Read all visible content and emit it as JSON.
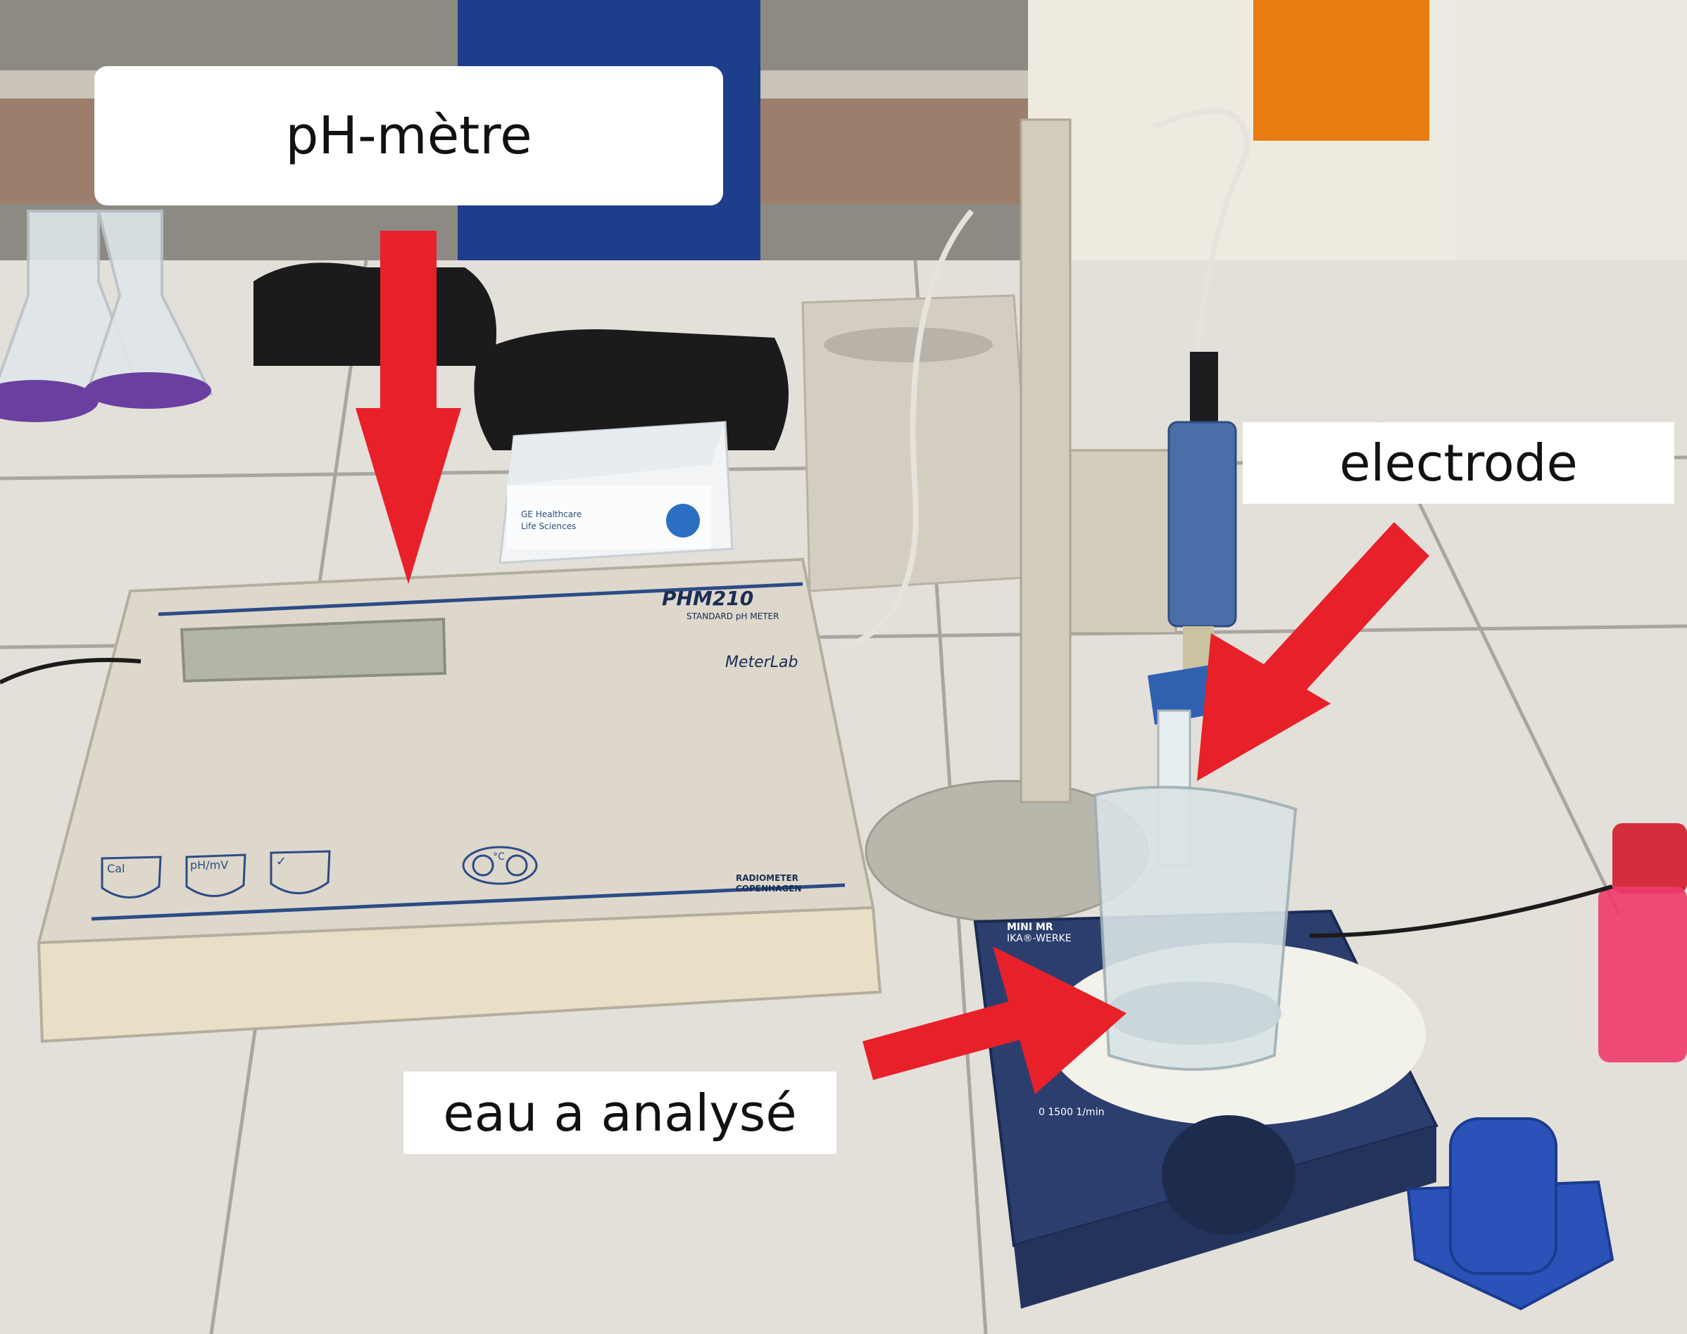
{
  "annotations": {
    "ph_meter": "pH-mètre",
    "electrode": "electrode",
    "water_sample": "eau a analysé"
  },
  "device": {
    "model": "PHM210",
    "subtitle": "STANDARD pH METER",
    "brand": "MeterLab",
    "maker_line1": "RADIOMETER",
    "maker_line2": "COPENHAGEN",
    "button_cal": "Cal",
    "button_ph": "pH/mV",
    "button_ok": "✓",
    "button_temp": "°C"
  },
  "box": {
    "line1": "GE Healthcare",
    "line2": "Life Sciences"
  },
  "stirrer": {
    "line1": "MINI MR",
    "line2": "IKA®-WERKE",
    "speed": "0   1500 1/min"
  },
  "colors": {
    "arrow": "#e8202a",
    "label_bg": "#ffffff",
    "solution_purple": "#6b3fa0",
    "solution_pink": "#ee3a6a",
    "stirrer_blue": "#2c3e6e",
    "cap_blue": "#2a52b8"
  }
}
